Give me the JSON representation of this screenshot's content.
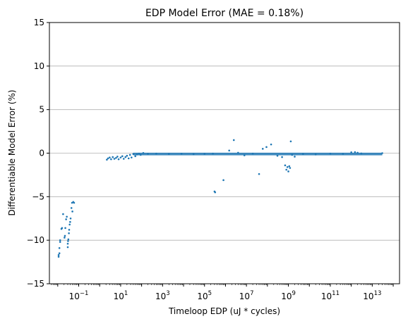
{
  "chart_data": {
    "type": "scatter",
    "title": "EDP Model Error (MAE = 0.18%)",
    "xlabel": "Timeloop EDP (uJ * cycles)",
    "ylabel": "Differentiable Model Error (%)",
    "xscale": "log",
    "xlim": [
      0.004,
      200000000000000
    ],
    "ylim": [
      -15,
      15
    ],
    "grid": "horizontal",
    "point_color": "#1f77b4",
    "x_ticks": [
      {
        "value": 0.1,
        "base": "10",
        "exp": "−1"
      },
      {
        "value": 10,
        "base": "10",
        "exp": "1"
      },
      {
        "value": 1000,
        "base": "10",
        "exp": "3"
      },
      {
        "value": 100000,
        "base": "10",
        "exp": "5"
      },
      {
        "value": 10000000,
        "base": "10",
        "exp": "7"
      },
      {
        "value": 1000000000,
        "base": "10",
        "exp": "9"
      },
      {
        "value": 100000000000,
        "base": "10",
        "exp": "11"
      },
      {
        "value": 10000000000000,
        "base": "10",
        "exp": "13"
      }
    ],
    "y_ticks": [
      {
        "value": 15,
        "label": "15"
      },
      {
        "value": 10,
        "label": "10"
      },
      {
        "value": 5,
        "label": "5"
      },
      {
        "value": 0,
        "label": "0"
      },
      {
        "value": -5,
        "label": "−5"
      },
      {
        "value": -10,
        "label": "−10"
      },
      {
        "value": -15,
        "label": "−15"
      }
    ],
    "points": [
      [
        0.011,
        -11.9
      ],
      [
        0.011,
        -11.7
      ],
      [
        0.012,
        -11.5
      ],
      [
        0.012,
        -10.9
      ],
      [
        0.013,
        -10.2
      ],
      [
        0.013,
        -10.0
      ],
      [
        0.015,
        -8.7
      ],
      [
        0.016,
        -8.6
      ],
      [
        0.018,
        -7.0
      ],
      [
        0.021,
        -9.7
      ],
      [
        0.022,
        -9.5
      ],
      [
        0.023,
        -8.6
      ],
      [
        0.025,
        -7.6
      ],
      [
        0.027,
        -7.3
      ],
      [
        0.03,
        -10.8
      ],
      [
        0.03,
        -10.4
      ],
      [
        0.031,
        -10.1
      ],
      [
        0.032,
        -9.9
      ],
      [
        0.034,
        -9.2
      ],
      [
        0.035,
        -8.8
      ],
      [
        0.037,
        -8.2
      ],
      [
        0.039,
        -7.9
      ],
      [
        0.041,
        -7.5
      ],
      [
        0.045,
        -6.3
      ],
      [
        0.048,
        -5.7
      ],
      [
        0.05,
        -6.7
      ],
      [
        0.055,
        -5.6
      ],
      [
        0.06,
        -5.7
      ],
      [
        2.2,
        -0.75
      ],
      [
        2.5,
        -0.6
      ],
      [
        3.0,
        -0.5
      ],
      [
        3.5,
        -0.7
      ],
      [
        4.2,
        -0.45
      ],
      [
        5.0,
        -0.65
      ],
      [
        6.0,
        -0.55
      ],
      [
        7.0,
        -0.4
      ],
      [
        8.0,
        -0.7
      ],
      [
        10,
        -0.5
      ],
      [
        12,
        -0.35
      ],
      [
        14,
        -0.65
      ],
      [
        17,
        -0.45
      ],
      [
        20,
        -0.3
      ],
      [
        24,
        -0.6
      ],
      [
        28,
        -0.2
      ],
      [
        33,
        -0.5
      ],
      [
        40,
        -0.1
      ],
      [
        50,
        -0.35
      ],
      [
        60,
        -0.15
      ],
      [
        75,
        -0.05
      ],
      [
        90,
        -0.2
      ],
      [
        120,
        0.02
      ],
      [
        200,
        -0.08
      ],
      [
        500,
        -0.05
      ],
      [
        2000,
        -0.1
      ],
      [
        8000,
        -0.06
      ],
      [
        30000,
        -0.12
      ],
      [
        100000,
        -0.08
      ],
      [
        250000,
        -0.05
      ],
      [
        300000,
        -4.4
      ],
      [
        320000,
        -4.5
      ],
      [
        800000,
        -3.1
      ],
      [
        1500000,
        0.3
      ],
      [
        2500000,
        1.5
      ],
      [
        4000000,
        0.05
      ],
      [
        8000000,
        -0.25
      ],
      [
        20000000,
        -0.05
      ],
      [
        40000000,
        -2.4
      ],
      [
        60000000,
        0.5
      ],
      [
        90000000,
        0.7
      ],
      [
        150000000,
        1.0
      ],
      [
        300000000,
        -0.3
      ],
      [
        500000000,
        -0.45
      ],
      [
        700000000,
        -1.4
      ],
      [
        800000000,
        -1.9
      ],
      [
        900000000,
        -1.6
      ],
      [
        1000000000,
        -2.1
      ],
      [
        1100000000,
        -1.5
      ],
      [
        1200000000,
        -1.7
      ],
      [
        1300000000,
        1.35
      ],
      [
        1500000000,
        -0.2
      ],
      [
        2000000000,
        -0.4
      ],
      [
        5000000000,
        -0.1
      ],
      [
        20000000000,
        -0.15
      ],
      [
        100000000000,
        -0.05
      ],
      [
        400000000000,
        -0.08
      ],
      [
        1000000000000,
        0.1
      ],
      [
        1500000000000,
        0.12
      ],
      [
        2000000000000,
        0.05
      ],
      [
        3000000000000,
        -0.03
      ],
      [
        30000000000000,
        0.0
      ]
    ],
    "bands": [
      {
        "x_from": 40,
        "x_to": 30000000000000,
        "y_from": -0.25,
        "y_to": 0.05
      }
    ]
  }
}
